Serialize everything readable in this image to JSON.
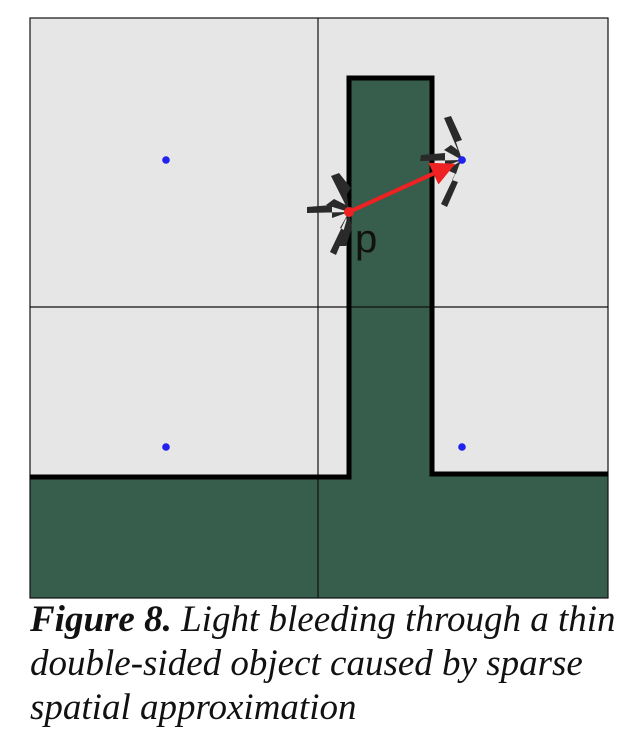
{
  "figure": {
    "point_label": "p",
    "colors": {
      "background_cell": "#e6e6e6",
      "solid_object": "#375d4c",
      "grid_line": "#111111",
      "outline": "#000000",
      "probe_dot": "#2222ee",
      "light_ray": "#ee2222",
      "direction_arrows": "#2a2a2a"
    }
  },
  "caption": {
    "label": "Figure 8.",
    "text": " Light bleeding through a thin double-sided object caused by sparse spatial approximation"
  }
}
